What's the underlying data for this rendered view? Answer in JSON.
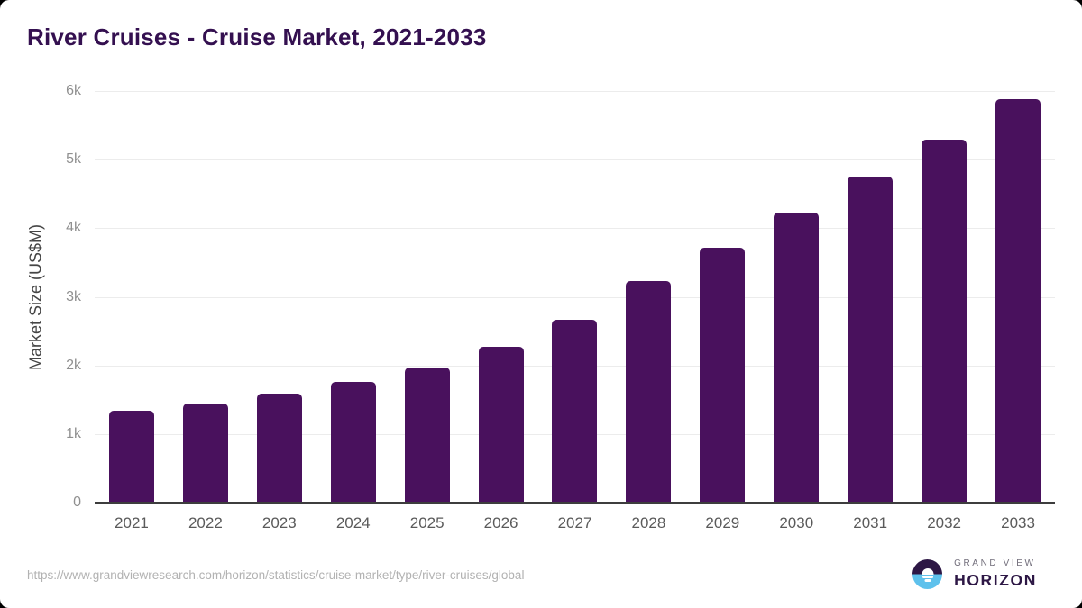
{
  "page": {
    "title": "River Cruises - Cruise Market, 2021-2033",
    "source_url": "https://www.grandviewresearch.com/horizon/statistics/cruise-market/type/river-cruises/global"
  },
  "branding": {
    "name_top": "GRAND VIEW",
    "name_bottom": "HORIZON",
    "logo_icon": "horizon-sunrise-logo",
    "logo_purple": "#2d1745",
    "logo_blue": "#5ec1ec"
  },
  "colors": {
    "bar": "#49115d",
    "title_text": "#341050",
    "grid": "#ececec",
    "axis_line": "#3d3d3d",
    "y_tick_text": "#909090",
    "x_tick_text": "#5a5a5a",
    "axis_title_text": "#454545",
    "source_text": "#b2b2b2"
  },
  "chart_data": {
    "type": "bar",
    "title": "River Cruises - Cruise Market, 2021-2033",
    "categories": [
      "2021",
      "2022",
      "2023",
      "2024",
      "2025",
      "2026",
      "2027",
      "2028",
      "2029",
      "2030",
      "2031",
      "2032",
      "2033"
    ],
    "values": [
      1340,
      1445,
      1590,
      1760,
      1975,
      2275,
      2665,
      3235,
      3715,
      4230,
      4750,
      5295,
      5880
    ],
    "xlabel": "",
    "ylabel": "Market Size (US$M)",
    "ylim": [
      0,
      6000
    ],
    "ytick_labels": [
      "6k",
      "5k",
      "4k",
      "3k",
      "2k",
      "1k",
      "0"
    ],
    "ytick_values": [
      6000,
      5000,
      4000,
      3000,
      2000,
      1000,
      0
    ],
    "grid": true,
    "legend": false,
    "bar_color": "#49115d"
  }
}
